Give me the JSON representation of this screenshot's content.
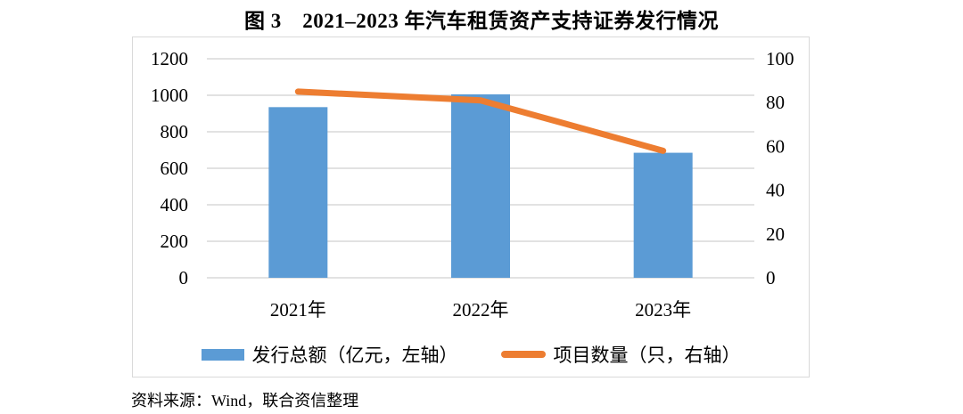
{
  "page": {
    "title": "图 3　2021–2023 年汽车租赁资产支持证券发行情况",
    "source_note": "资料来源：Wind，联合资信整理"
  },
  "chart_data": {
    "type": "bar",
    "subtype": "bar-and-line-dual-axis",
    "title": "图 3　2021–2023 年汽车租赁资产支持证券发行情况",
    "categories": [
      "2021年",
      "2022年",
      "2023年"
    ],
    "series": [
      {
        "name": "发行总额（亿元，左轴）",
        "type": "bar",
        "axis": "left",
        "values": [
          935,
          1005,
          685
        ],
        "color": "#5B9BD5"
      },
      {
        "name": "项目数量（只，右轴）",
        "type": "line",
        "axis": "right",
        "values": [
          85,
          81,
          58
        ],
        "color": "#ED7D31"
      }
    ],
    "left_axis": {
      "min": 0,
      "max": 1200,
      "ticks": [
        "0",
        "200",
        "400",
        "600",
        "800",
        "1000",
        "1200"
      ]
    },
    "right_axis": {
      "min": 0,
      "max": 100,
      "ticks": [
        "0",
        "20",
        "40",
        "60",
        "80",
        "100"
      ]
    },
    "grid": true,
    "legend_position": "bottom",
    "colors": {
      "grid": "#d9d9d9",
      "border": "#d9d9d9",
      "text": "#000000"
    }
  }
}
